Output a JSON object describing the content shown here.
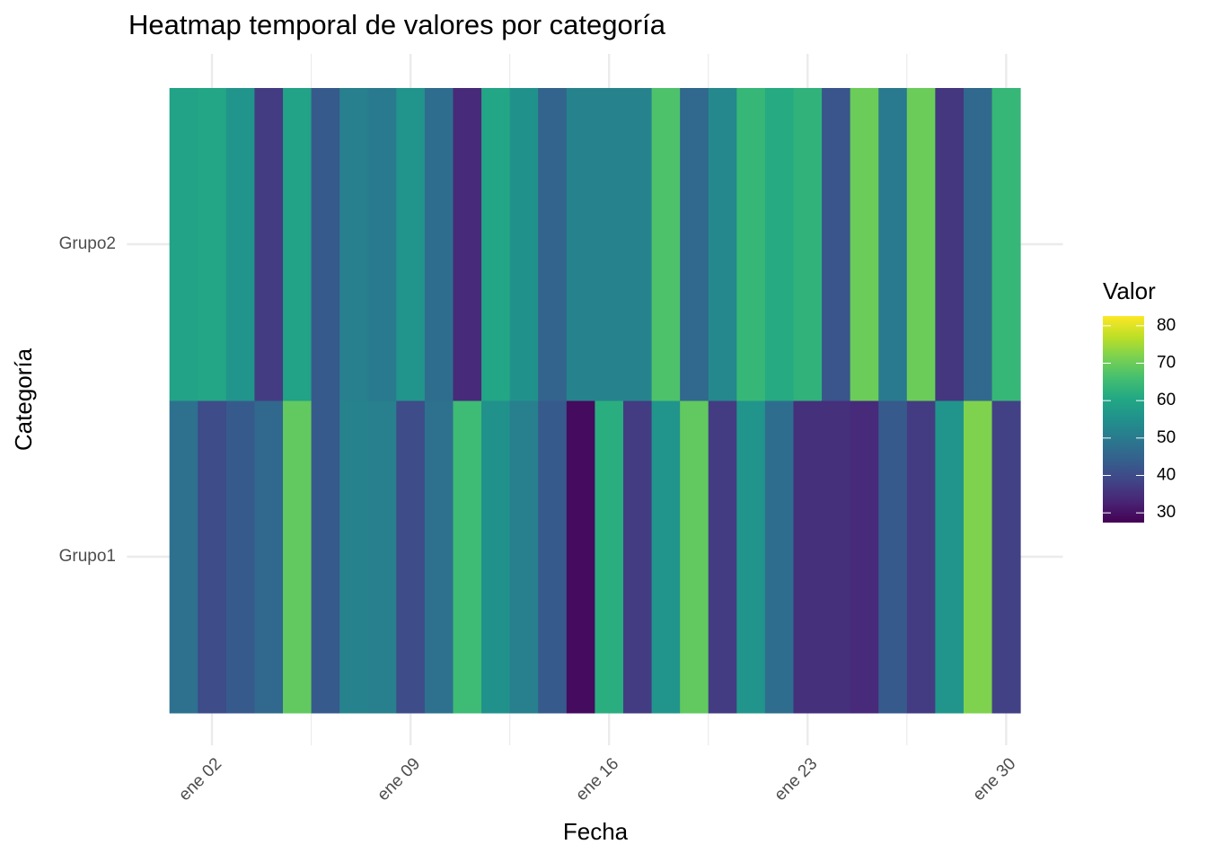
{
  "chart_data": {
    "type": "heatmap",
    "title": "Heatmap temporal de valores por categoría",
    "xlabel": "Fecha",
    "ylabel": "Categoría",
    "x": [
      1,
      2,
      3,
      4,
      5,
      6,
      7,
      8,
      9,
      10,
      11,
      12,
      13,
      14,
      15,
      16,
      17,
      18,
      19,
      20,
      21,
      22,
      23,
      24,
      25,
      26,
      27,
      28,
      29,
      30
    ],
    "categories": [
      "Grupo1",
      "Grupo2"
    ],
    "values": [
      [
        48,
        40,
        43,
        46,
        69,
        43,
        52,
        51,
        40,
        48,
        65,
        55,
        51,
        43,
        29,
        62,
        37,
        56,
        69,
        37,
        56,
        47,
        35,
        35,
        34,
        43,
        37,
        56,
        72,
        38
      ],
      [
        59,
        60,
        56,
        37,
        59,
        43,
        51,
        50,
        56,
        47,
        34,
        60,
        55,
        45,
        52,
        52,
        52,
        67,
        46,
        53,
        64,
        61,
        63,
        42,
        70,
        50,
        70,
        36,
        46,
        64
      ]
    ],
    "xlim": [
      -1,
      32
    ],
    "xticks": [
      {
        "value": 2,
        "label": "ene 02"
      },
      {
        "value": 9,
        "label": "ene 09"
      },
      {
        "value": 16,
        "label": "ene 16"
      },
      {
        "value": 23,
        "label": "ene 23"
      },
      {
        "value": 30,
        "label": "ene 30"
      }
    ],
    "legend_title": "Valor",
    "clim": [
      27.4,
      82.6
    ],
    "cticks": [
      30,
      40,
      50,
      60,
      70,
      80
    ],
    "colormap": [
      "#440154",
      "#482475",
      "#414487",
      "#355f8d",
      "#2a788e",
      "#21918c",
      "#22a884",
      "#44bf70",
      "#7ad151",
      "#bddf26",
      "#fde725"
    ],
    "grid": true
  }
}
